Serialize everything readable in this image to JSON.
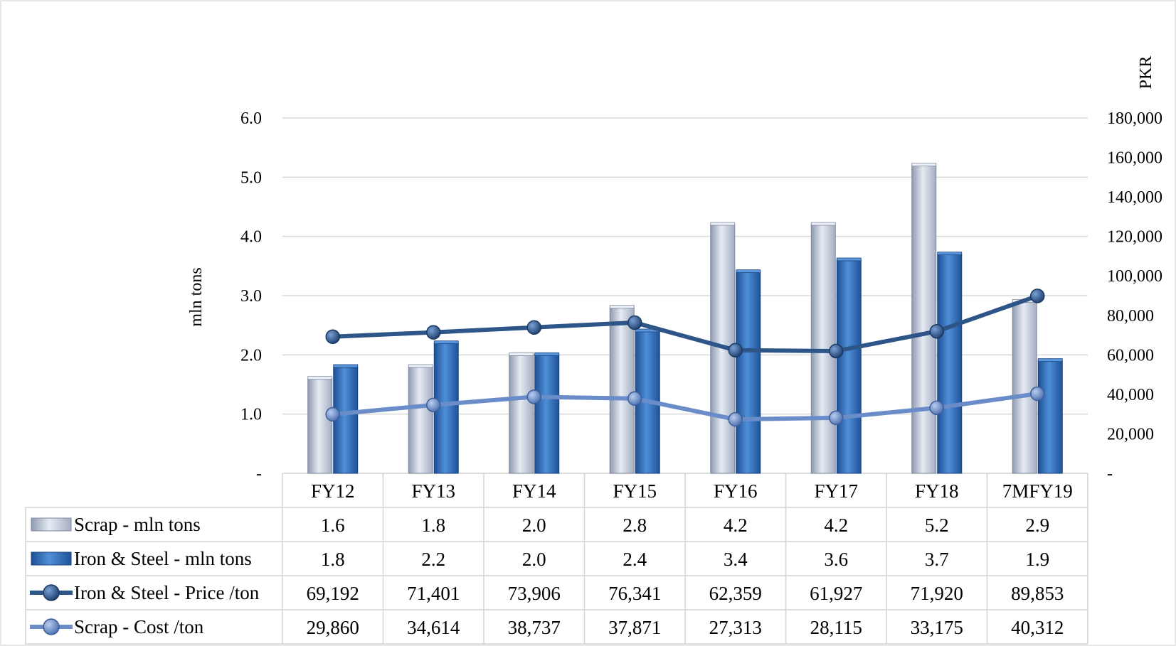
{
  "chart_data": {
    "type": "bar",
    "categories": [
      "FY12",
      "FY13",
      "FY14",
      "FY15",
      "FY16",
      "FY17",
      "FY18",
      "7MFY19"
    ],
    "ylabel_left": "mln tons",
    "ylabel_right": "PKR",
    "ylim_left": [
      0,
      6
    ],
    "ylim_right": [
      0,
      180000
    ],
    "y_ticks_left": [
      "-",
      "1.0",
      "2.0",
      "3.0",
      "4.0",
      "5.0",
      "6.0"
    ],
    "y_ticks_right": [
      "-",
      "20,000",
      "40,000",
      "60,000",
      "80,000",
      "100,000",
      "120,000",
      "140,000",
      "160,000",
      "180,000"
    ],
    "grid": true,
    "legend_placement": "data-table",
    "series": [
      {
        "name": "Scrap - mln tons",
        "kind": "bar",
        "axis": "left",
        "color": "#c7d0e0",
        "values": [
          1.6,
          1.8,
          2.0,
          2.8,
          4.2,
          4.2,
          5.2,
          2.9
        ],
        "labels": [
          "1.6",
          "1.8",
          "2.0",
          "2.8",
          "4.2",
          "4.2",
          "5.2",
          "2.9"
        ]
      },
      {
        "name": "Iron & Steel - mln tons",
        "kind": "bar",
        "axis": "left",
        "color": "#2f6bb8",
        "values": [
          1.8,
          2.2,
          2.0,
          2.4,
          3.4,
          3.6,
          3.7,
          1.9
        ],
        "labels": [
          "1.8",
          "2.2",
          "2.0",
          "2.4",
          "3.4",
          "3.6",
          "3.7",
          "1.9"
        ]
      },
      {
        "name": "Iron & Steel - Price /ton",
        "kind": "line",
        "axis": "right",
        "color": "#2e5588",
        "values": [
          69192,
          71401,
          73906,
          76341,
          62359,
          61927,
          71920,
          89853
        ],
        "labels": [
          "69,192",
          "71,401",
          "73,906",
          "76,341",
          "62,359",
          "61,927",
          "71,920",
          "89,853"
        ]
      },
      {
        "name": "Scrap - Cost /ton",
        "kind": "line",
        "axis": "right",
        "color": "#6a8cc8",
        "values": [
          29860,
          34614,
          38737,
          37871,
          27313,
          28115,
          33175,
          40312
        ],
        "labels": [
          "29,860",
          "34,614",
          "38,737",
          "37,871",
          "27,313",
          "28,115",
          "33,175",
          "40,312"
        ]
      }
    ]
  }
}
